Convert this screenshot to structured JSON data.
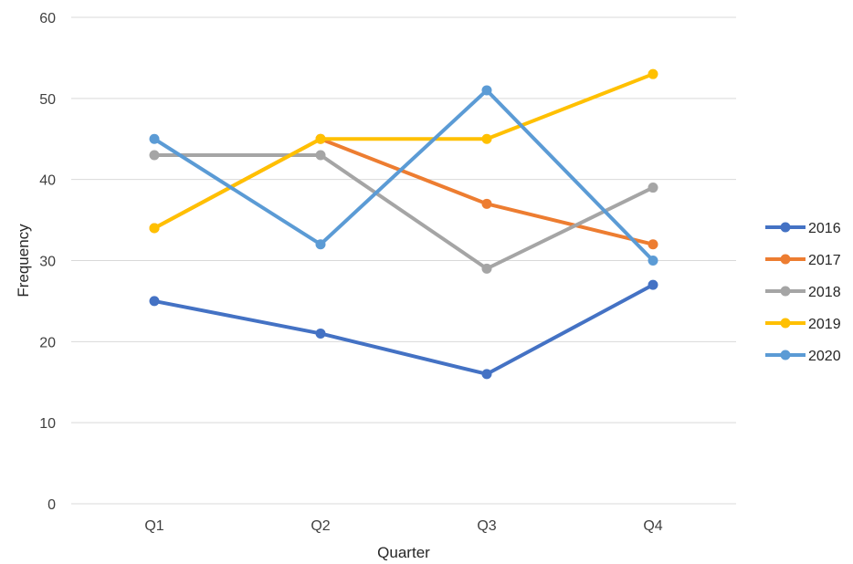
{
  "chart_data": {
    "type": "line",
    "title": "",
    "xlabel": "Quarter",
    "ylabel": "Frequency",
    "categories": [
      "Q1",
      "Q2",
      "Q3",
      "Q4"
    ],
    "ylim": [
      0,
      60
    ],
    "yticks": [
      0,
      10,
      20,
      30,
      40,
      50,
      60
    ],
    "grid": true,
    "legend_position": "right",
    "series": [
      {
        "name": "2016",
        "color": "#4472C4",
        "values": [
          25,
          21,
          16,
          27
        ]
      },
      {
        "name": "2017",
        "color": "#ED7D31",
        "values": [
          34,
          45,
          37,
          32
        ]
      },
      {
        "name": "2018",
        "color": "#A5A5A5",
        "values": [
          43,
          43,
          29,
          39
        ]
      },
      {
        "name": "2019",
        "color": "#FFC000",
        "values": [
          34,
          45,
          45,
          53
        ]
      },
      {
        "name": "2020",
        "color": "#5B9BD5",
        "values": [
          45,
          32,
          51,
          30
        ]
      }
    ]
  }
}
